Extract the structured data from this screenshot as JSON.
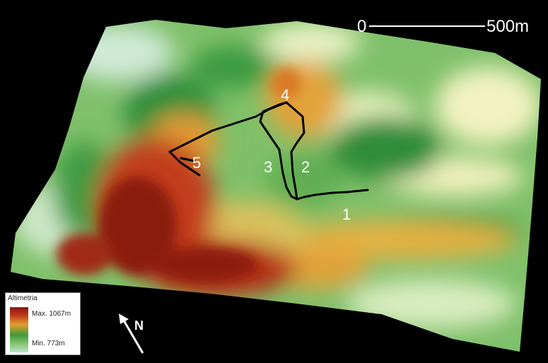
{
  "scale_bar": {
    "start_label": "0",
    "end_label": "500m"
  },
  "north_arrow": {
    "label": "N"
  },
  "legend": {
    "title": "Altimetria",
    "max_label": "Max. 1067m",
    "min_label": "Min. 773m",
    "colors": [
      "#8a1710",
      "#c0391b",
      "#e29c2c",
      "#3f9a3e",
      "#86c36c",
      "#bde4cf"
    ]
  },
  "points": [
    {
      "name": "point-1",
      "label": "1"
    },
    {
      "name": "point-2",
      "label": "2"
    },
    {
      "name": "point-3",
      "label": "3"
    },
    {
      "name": "point-4",
      "label": "4"
    },
    {
      "name": "point-5",
      "label": "5"
    }
  ]
}
